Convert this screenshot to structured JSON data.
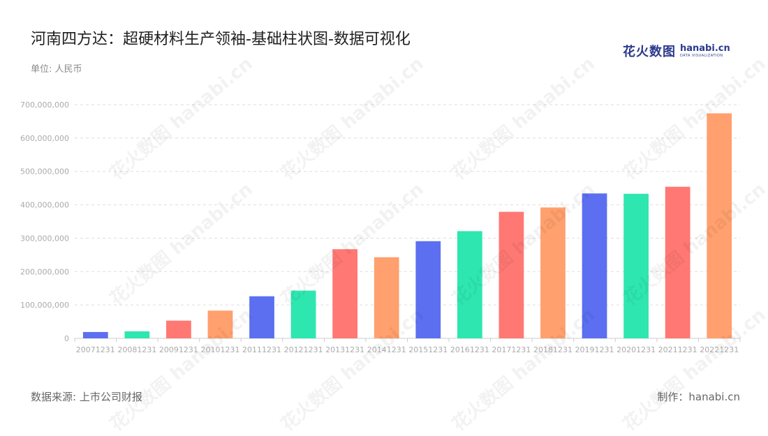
{
  "header": {
    "title": "河南四方达：超硬材料生产领袖-基础柱状图-数据可视化",
    "unit": "单位: 人民币"
  },
  "logo": {
    "cn": "花火数图",
    "en": "hanabi.cn",
    "sub": "DATA VISUALIZATION"
  },
  "footer": {
    "source": "数据来源: 上市公司财报",
    "maker": "制作：hanabi.cn"
  },
  "watermark": "花火数图 hanabi.cn",
  "colors": {
    "palette": [
      "#5b6ff0",
      "#2ee6b0",
      "#ff7873",
      "#ffa06e"
    ],
    "grid": "#dddddd",
    "axis": "#cccccc",
    "tick_text": "#aaaaaa"
  },
  "chart_data": {
    "type": "bar",
    "categories": [
      "20071231",
      "20081231",
      "20091231",
      "20101231",
      "20111231",
      "20121231",
      "20131231",
      "20141231",
      "20151231",
      "20161231",
      "20171231",
      "20181231",
      "20191231",
      "20201231",
      "20211231",
      "20221231"
    ],
    "values": [
      19000000,
      21000000,
      53000000,
      83000000,
      126000000,
      143000000,
      267000000,
      243000000,
      291000000,
      321000000,
      379000000,
      392000000,
      434000000,
      433000000,
      454000000,
      674000000
    ],
    "ylim": [
      0,
      700000000
    ],
    "yticks": [
      0,
      100000000,
      200000000,
      300000000,
      400000000,
      500000000,
      600000000,
      700000000
    ],
    "ytick_labels": [
      "0",
      "100,000,000",
      "200,000,000",
      "300,000,000",
      "400,000,000",
      "500,000,000",
      "600,000,000",
      "700,000,000"
    ],
    "grid": true,
    "bar_color_cycle": [
      "#5b6ff0",
      "#2ee6b0",
      "#ff7873",
      "#ffa06e"
    ]
  }
}
